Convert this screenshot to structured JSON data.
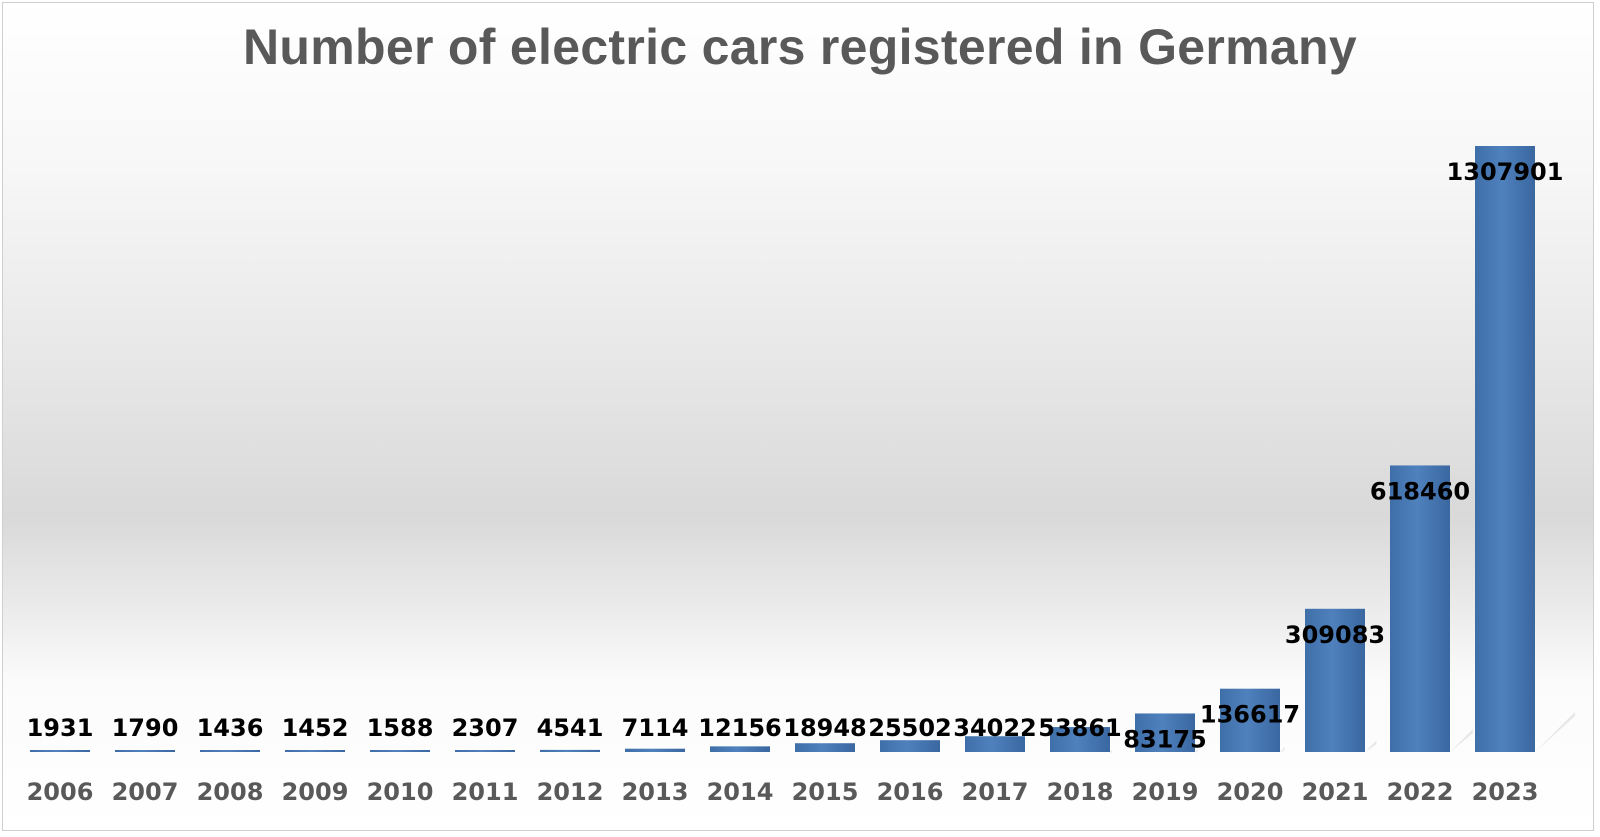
{
  "chart_data": {
    "type": "bar",
    "title": "Number of electric cars registered in Germany",
    "xlabel": "",
    "ylabel": "",
    "categories": [
      "2006",
      "2007",
      "2008",
      "2009",
      "2010",
      "2011",
      "2012",
      "2013",
      "2014",
      "2015",
      "2016",
      "2017",
      "2018",
      "2019",
      "2020",
      "2021",
      "2022",
      "2023"
    ],
    "values": [
      1931,
      1790,
      1436,
      1452,
      1588,
      2307,
      4541,
      7114,
      12156,
      18948,
      25502,
      34022,
      53861,
      83175,
      136617,
      309083,
      618460,
      1307901
    ],
    "ylim": [
      0,
      1307901
    ],
    "grid": false,
    "legend": "none",
    "bar_color": "#4f81bd",
    "bar_color_dark": "#3a6aa3",
    "label_color": "#000000",
    "tick_color": "#595959"
  }
}
